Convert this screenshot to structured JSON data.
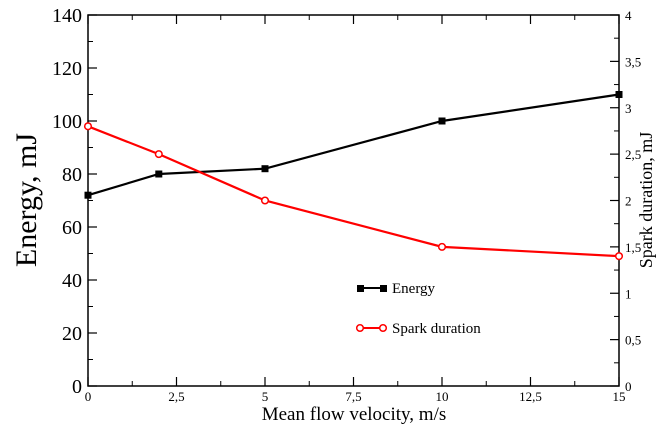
{
  "chart_data": {
    "type": "line",
    "xlabel": "Mean flow velocity, m/s",
    "ylabel": "Energy, mJ",
    "y2label": "Spark duration, mJ",
    "xlim": [
      0,
      15
    ],
    "ylim": [
      0,
      140
    ],
    "y2lim": [
      0,
      4
    ],
    "x_ticks": [
      "0",
      "2,5",
      "5",
      "7,5",
      "10",
      "12,5",
      "15"
    ],
    "y_ticks": [
      "0",
      "20",
      "40",
      "60",
      "80",
      "100",
      "120",
      "140"
    ],
    "y2_ticks": [
      "0",
      "0,5",
      "1",
      "1,5",
      "2",
      "2,5",
      "3",
      "3,5",
      "4"
    ],
    "grid": false,
    "legend_position": "center-right",
    "series": [
      {
        "name": "Energy",
        "axis": "left",
        "color": "#000000",
        "marker": "filled-square",
        "x": [
          0,
          2,
          5,
          10,
          15
        ],
        "values": [
          72,
          80,
          82,
          100,
          110
        ]
      },
      {
        "name": "Spark duration",
        "axis": "right",
        "color": "#ff0000",
        "marker": "open-circle",
        "x": [
          0,
          2,
          5,
          10,
          15
        ],
        "values": [
          2.8,
          2.5,
          2.0,
          1.5,
          1.4
        ]
      }
    ]
  }
}
